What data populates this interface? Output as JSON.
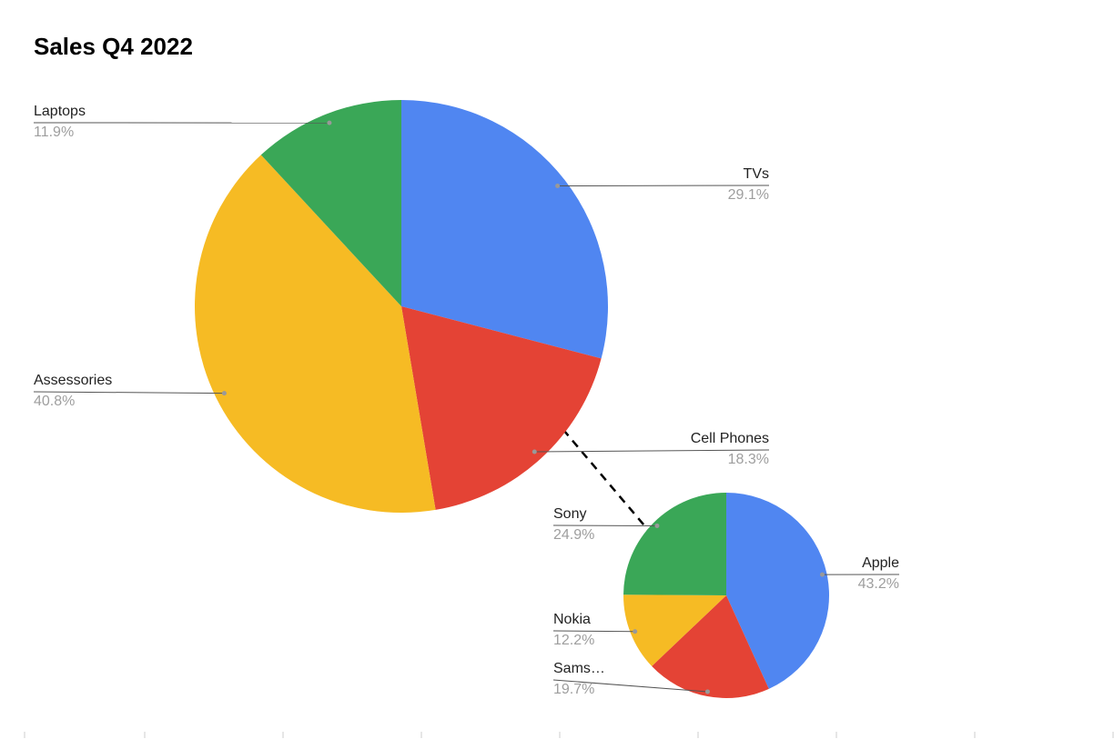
{
  "chart_data": [
    {
      "type": "pie",
      "title": "Sales Q4 2022",
      "categories": [
        "TVs",
        "Cell Phones",
        "Assessories",
        "Laptops"
      ],
      "values": [
        29.1,
        18.3,
        40.8,
        11.9
      ],
      "value_labels": [
        "29.1%",
        "18.3%",
        "40.8%",
        "11.9%"
      ],
      "colors": [
        "#5086f1",
        "#e44335",
        "#f6bb24",
        "#3aa757"
      ]
    },
    {
      "type": "pie",
      "categories": [
        "Apple",
        "Sams…",
        "Nokia",
        "Sony"
      ],
      "values": [
        43.2,
        19.7,
        12.2,
        24.9
      ],
      "value_labels": [
        "43.2%",
        "19.7%",
        "12.2%",
        "24.9%"
      ],
      "colors": [
        "#5086f1",
        "#e44335",
        "#f6bb24",
        "#3aa757"
      ]
    }
  ]
}
